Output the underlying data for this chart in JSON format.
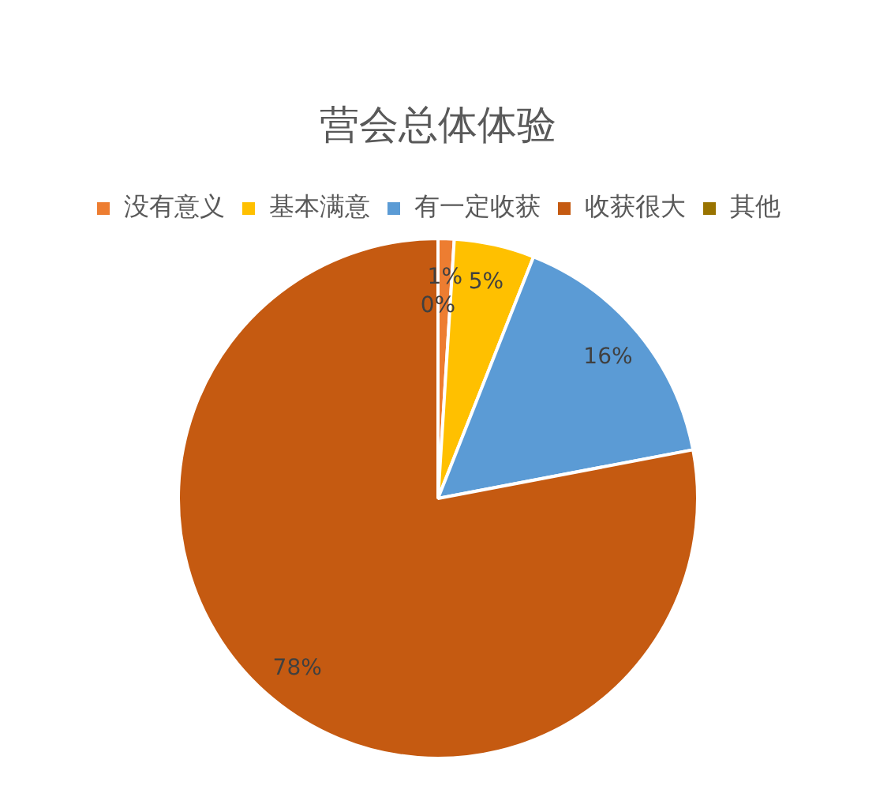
{
  "chart_data": {
    "type": "pie",
    "title": "营会总体体验",
    "categories": [
      "没有意义",
      "基本满意",
      "有一定收获",
      "收获很大",
      "其他"
    ],
    "values": [
      1,
      5,
      16,
      78,
      0
    ],
    "colors": [
      "#ed7d31",
      "#ffc000",
      "#5b9bd5",
      "#c55a11",
      "#997300"
    ],
    "value_labels": [
      "1%",
      "5%",
      "16%",
      "78%",
      "0%"
    ],
    "legend": "top"
  }
}
